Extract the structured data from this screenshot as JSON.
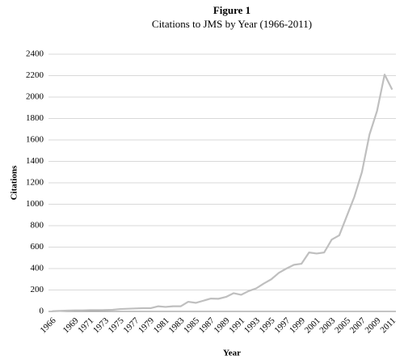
{
  "chart_data": {
    "type": "line",
    "title": "Figure 1",
    "subtitle": "Citations to JMS by Year (1966-2011)",
    "x_label": "Year",
    "y_label": "Citations",
    "categories": [
      "1966",
      null,
      null,
      "1969",
      null,
      "1971",
      null,
      "1973",
      null,
      "1975",
      null,
      "1977",
      null,
      "1979",
      null,
      "1981",
      null,
      "1983",
      null,
      "1985",
      null,
      "1987",
      null,
      "1989",
      null,
      "1991",
      null,
      "1993",
      null,
      "1995",
      null,
      "1997",
      null,
      "1999",
      null,
      "2001",
      null,
      "2003",
      null,
      "2005",
      null,
      "2007",
      null,
      "2009",
      null,
      "2011"
    ],
    "series": [
      {
        "name": "Citations",
        "color": "#bfbfbf",
        "values": [
          2,
          5,
          8,
          10,
          10,
          12,
          12,
          13,
          15,
          22,
          25,
          28,
          30,
          30,
          48,
          42,
          48,
          48,
          90,
          80,
          100,
          120,
          118,
          135,
          170,
          155,
          190,
          215,
          260,
          300,
          360,
          400,
          435,
          445,
          550,
          540,
          550,
          670,
          710,
          890,
          1070,
          1300,
          1650,
          1870,
          2210,
          2070
        ]
      }
    ],
    "ylim": [
      0,
      2400
    ],
    "yticks": [
      0,
      200,
      400,
      600,
      800,
      1000,
      1200,
      1400,
      1600,
      1800,
      2000,
      2200,
      2400
    ],
    "grid": true
  }
}
